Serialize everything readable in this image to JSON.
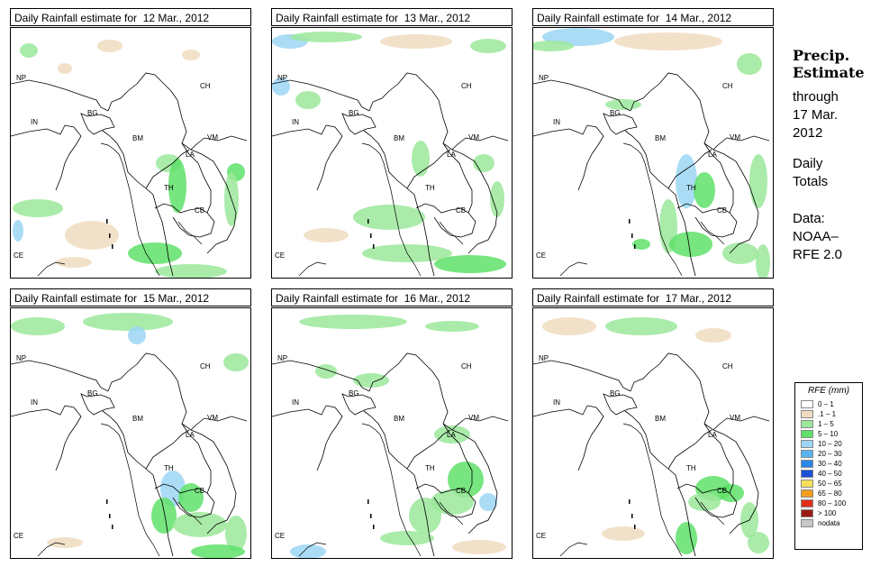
{
  "panels": [
    {
      "title": "Daily Rainfall estimate for  12 Mar., 2012"
    },
    {
      "title": "Daily Rainfall estimate for  13 Mar., 2012"
    },
    {
      "title": "Daily Rainfall estimate for  14 Mar., 2012"
    },
    {
      "title": "Daily Rainfall estimate for  15 Mar., 2012"
    },
    {
      "title": "Daily Rainfall estimate for  16 Mar., 2012"
    },
    {
      "title": "Daily Rainfall estimate for  17 Mar., 2012"
    }
  ],
  "map_labels": {
    "np": "NP",
    "ch": "CH",
    "in": "IN",
    "bg": "BG",
    "bm": "BM",
    "vm": "VM",
    "la": "LA",
    "th": "TH",
    "cb": "CB",
    "ce": "CE"
  },
  "sidebar": {
    "title_line1": "Precip.",
    "title_line2": "Estimate",
    "through": "through",
    "date_line1": "17 Mar.",
    "date_line2": "2012",
    "daily_line1": "Daily",
    "daily_line2": "Totals",
    "data_line1": "Data:",
    "data_line2": "NOAA–",
    "data_line3": "RFE 2.0"
  },
  "legend": {
    "title": "RFE (mm)",
    "items": [
      {
        "label": "0 – 1",
        "color": "#ffffff"
      },
      {
        "label": ".1 – 1",
        "color": "#f0dcc0"
      },
      {
        "label": "1 – 5",
        "color": "#9be89b"
      },
      {
        "label": "5 – 10",
        "color": "#5fe06a"
      },
      {
        "label": "10 – 20",
        "color": "#9cd6f5"
      },
      {
        "label": "20 – 30",
        "color": "#58b4f0"
      },
      {
        "label": "30 – 40",
        "color": "#2a86e8"
      },
      {
        "label": "40 – 50",
        "color": "#1a4fd6"
      },
      {
        "label": "50 – 65",
        "color": "#f5df5a"
      },
      {
        "label": "65 – 80",
        "color": "#f59e1e"
      },
      {
        "label": "80 – 100",
        "color": "#e0301a"
      },
      {
        "label": "> 100",
        "color": "#9a1c14"
      },
      {
        "label": "nodata",
        "color": "#c8c8c8"
      }
    ]
  }
}
